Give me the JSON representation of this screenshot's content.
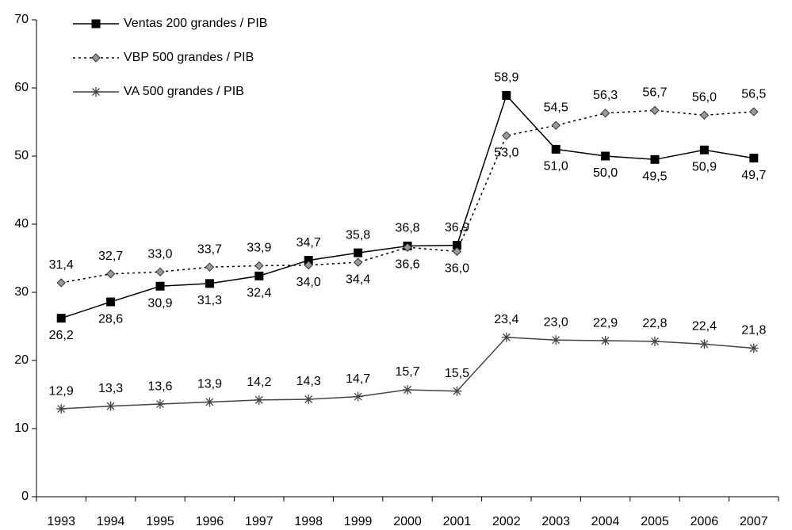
{
  "chart_data": {
    "type": "line",
    "categories": [
      "1993",
      "1994",
      "1995",
      "1996",
      "1997",
      "1998",
      "1999",
      "2000",
      "2001",
      "2002",
      "2003",
      "2004",
      "2005",
      "2006",
      "2007"
    ],
    "ylim": [
      0,
      70
    ],
    "yticks": [
      0,
      10,
      20,
      30,
      40,
      50,
      60,
      70
    ],
    "legend": "top-left",
    "series": [
      {
        "name": "Ventas 200 grandes / PIB",
        "color": "#000000",
        "line_style": "solid",
        "marker": "square",
        "values": [
          26.2,
          28.6,
          30.9,
          31.3,
          32.4,
          34.7,
          35.8,
          36.8,
          36.9,
          58.9,
          51.0,
          50.0,
          49.5,
          50.9,
          49.7
        ],
        "value_labels": [
          "26,2",
          "28,6",
          "30,9",
          "31,3",
          "32,4",
          "34,7",
          "35,8",
          "36,8",
          "36,9",
          "58,9",
          "51,0",
          "50,0",
          "49,5",
          "50,9",
          "49,7"
        ]
      },
      {
        "name": "VBP 500 grandes / PIB",
        "color": "#999999",
        "line_style": "dotted",
        "marker": "diamond",
        "values": [
          31.4,
          32.7,
          33.0,
          33.7,
          33.9,
          34.0,
          34.4,
          36.6,
          36.0,
          53.0,
          54.5,
          56.3,
          56.7,
          56.0,
          56.5
        ],
        "value_labels": [
          "31,4",
          "32,7",
          "33,0",
          "33,7",
          "33,9",
          "34,0",
          "34,4",
          "36,6",
          "36,0",
          "53,0",
          "54,5",
          "56,3",
          "56,7",
          "56,0",
          "56,5"
        ]
      },
      {
        "name": "VA 500 grandes / PIB",
        "color": "#444444",
        "line_style": "solid",
        "marker": "asterisk",
        "values": [
          12.9,
          13.3,
          13.6,
          13.9,
          14.2,
          14.3,
          14.7,
          15.7,
          15.5,
          23.4,
          23.0,
          22.9,
          22.8,
          22.4,
          21.8
        ],
        "value_labels": [
          "12,9",
          "13,3",
          "13,6",
          "13,9",
          "14,2",
          "14,3",
          "14,7",
          "15,7",
          "15,5",
          "23,4",
          "23,0",
          "22,9",
          "22,8",
          "22,4",
          "21,8"
        ]
      }
    ]
  }
}
